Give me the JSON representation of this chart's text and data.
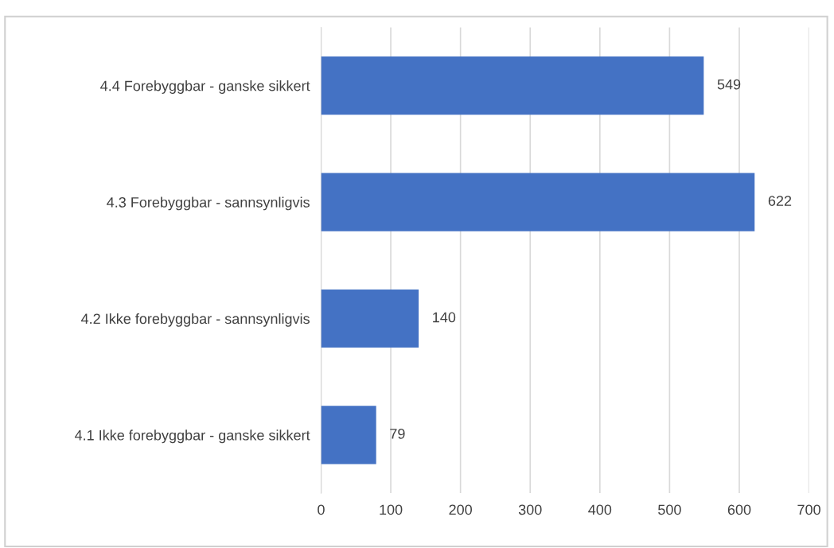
{
  "chart_data": {
    "type": "bar",
    "orientation": "horizontal",
    "categories": [
      "4.4 Forebyggbar - ganske sikkert",
      "4.3 Forebyggbar - sannsynligvis",
      "4.2 Ikke forebyggbar - sannsynligvis",
      "4.1 Ikke forebyggbar - ganske sikkert"
    ],
    "values": [
      549,
      622,
      140,
      79
    ],
    "color": "#4472c4",
    "xlim": [
      0,
      700
    ],
    "xticks": [
      0,
      100,
      200,
      300,
      400,
      500,
      600,
      700
    ],
    "grid": "x",
    "data_labels": true
  }
}
